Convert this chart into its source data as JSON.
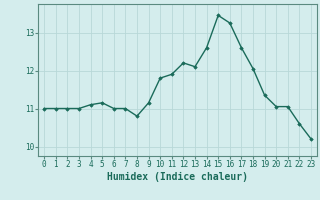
{
  "x": [
    0,
    1,
    2,
    3,
    4,
    5,
    6,
    7,
    8,
    9,
    10,
    11,
    12,
    13,
    14,
    15,
    16,
    17,
    18,
    19,
    20,
    21,
    22,
    23
  ],
  "y": [
    11.0,
    11.0,
    11.0,
    11.0,
    11.1,
    11.15,
    11.0,
    11.0,
    10.8,
    11.15,
    11.8,
    11.9,
    12.2,
    12.1,
    12.6,
    13.45,
    13.25,
    12.6,
    12.05,
    11.35,
    11.05,
    11.05,
    10.6,
    10.2
  ],
  "line_color": "#1a6b5a",
  "marker": "D",
  "marker_size": 1.8,
  "bg_color": "#d4eded",
  "grid_color": "#b8d8d8",
  "xlabel": "Humidex (Indice chaleur)",
  "ylim": [
    9.75,
    13.75
  ],
  "xlim": [
    -0.5,
    23.5
  ],
  "yticks": [
    10,
    11,
    12,
    13
  ],
  "xticks": [
    0,
    1,
    2,
    3,
    4,
    5,
    6,
    7,
    8,
    9,
    10,
    11,
    12,
    13,
    14,
    15,
    16,
    17,
    18,
    19,
    20,
    21,
    22,
    23
  ],
  "tick_fontsize": 5.5,
  "xlabel_fontsize": 7.0,
  "line_width": 1.0,
  "axis_color": "#1a6b5a",
  "spine_color": "#5a8a80"
}
